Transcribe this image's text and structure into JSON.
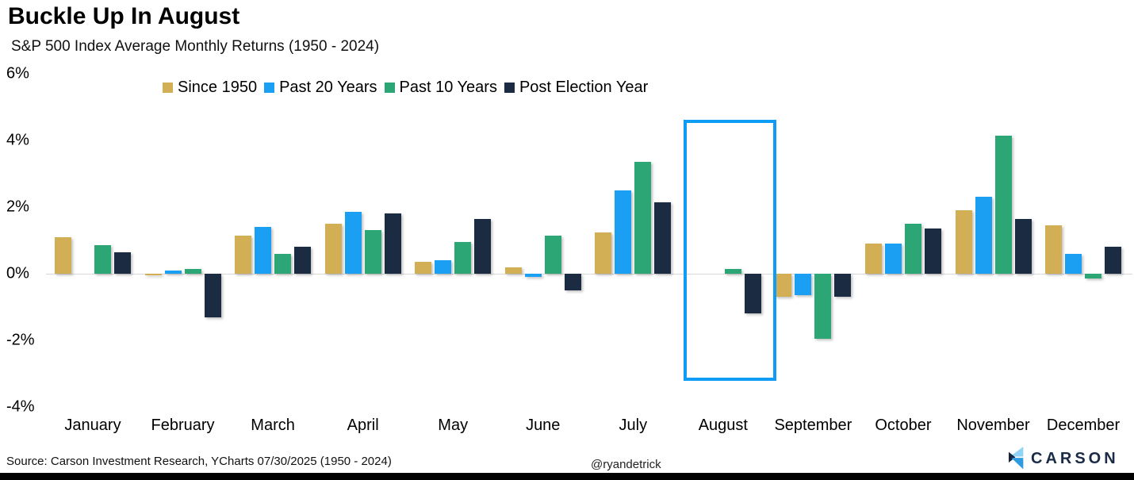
{
  "title": "Buckle Up In August",
  "subtitle": "S&P 500 Index Average Monthly Returns (1950 - 2024)",
  "footer": {
    "source": "Source: Carson Investment Research, YCharts 07/30/2025 (1950 - 2024)",
    "handle": "@ryandetrick",
    "brand": "CARSON"
  },
  "colors": {
    "since1950": "#d2ae55",
    "past20": "#1a9ff2",
    "past10": "#2ba674",
    "postElection": "#1a2b42",
    "highlightBox": "#0f9cf5",
    "zeroLine": "#d8d8d8",
    "brandNavy": "#1b2b45",
    "brandLightBlue": "#8fd4f6",
    "brandMidBlue": "#2e9ae0"
  },
  "chart_data": {
    "type": "bar",
    "categories": [
      "January",
      "February",
      "March",
      "April",
      "May",
      "June",
      "July",
      "August",
      "September",
      "October",
      "November",
      "December"
    ],
    "series": [
      {
        "name": "Since 1950",
        "color": "#d2ae55",
        "values": [
          1.1,
          -0.05,
          1.15,
          1.5,
          0.35,
          0.2,
          1.25,
          0.0,
          -0.7,
          0.9,
          1.9,
          1.45
        ]
      },
      {
        "name": "Past 20 Years",
        "color": "#1a9ff2",
        "values": [
          0.0,
          0.1,
          1.4,
          1.85,
          0.4,
          -0.1,
          2.5,
          0.0,
          -0.65,
          0.9,
          2.3,
          0.6
        ]
      },
      {
        "name": "Past 10 Years",
        "color": "#2ba674",
        "values": [
          0.85,
          0.15,
          0.6,
          1.3,
          0.95,
          1.15,
          3.35,
          0.15,
          -1.95,
          1.5,
          4.15,
          -0.15
        ]
      },
      {
        "name": "Post Election Year",
        "color": "#1a2b42",
        "values": [
          0.65,
          -1.3,
          0.8,
          1.8,
          1.65,
          -0.5,
          2.15,
          -1.2,
          -0.7,
          1.35,
          1.65,
          0.8
        ]
      }
    ],
    "ylabel": "",
    "xlabel": "",
    "ylim": [
      -4,
      6
    ],
    "yticks": [
      {
        "label": "6%",
        "value": 6
      },
      {
        "label": "4%",
        "value": 4
      },
      {
        "label": "2%",
        "value": 2
      },
      {
        "label": "0%",
        "value": 0
      },
      {
        "label": "-2%",
        "value": -2
      },
      {
        "label": "-4%",
        "value": -4
      }
    ],
    "grid": false,
    "legend_position": "top-center",
    "highlight": {
      "month": "August"
    }
  }
}
